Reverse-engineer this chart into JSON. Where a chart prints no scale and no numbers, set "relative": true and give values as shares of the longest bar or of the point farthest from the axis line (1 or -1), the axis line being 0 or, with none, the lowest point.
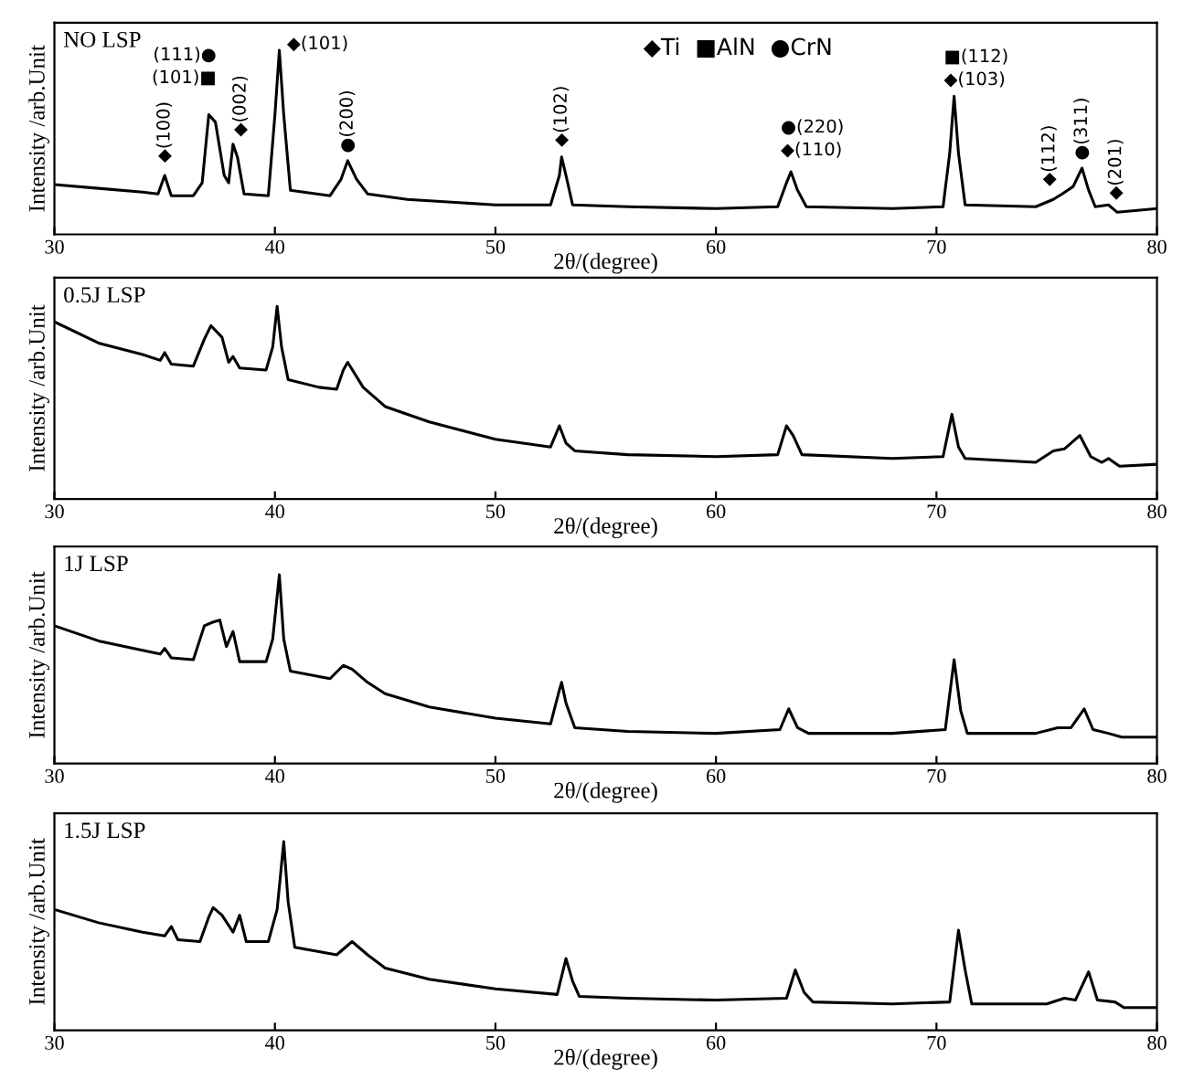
{
  "chart_data": [
    {
      "type": "line",
      "relative": true,
      "title": "NO LSP",
      "xlabel": "2θ/(degree)",
      "ylabel": "Intensity /arb.Unit",
      "xlim": [
        30,
        80
      ],
      "xticks": [
        30,
        40,
        50,
        60,
        70,
        80
      ],
      "grid": false,
      "legend": false,
      "marker": "none",
      "line_style": "solid",
      "x": [
        30,
        32,
        34,
        34.7,
        35.0,
        35.3,
        36.3,
        36.7,
        37.0,
        37.3,
        37.7,
        37.9,
        38.1,
        38.3,
        38.6,
        39.7,
        40.0,
        40.2,
        40.4,
        40.7,
        42.5,
        43.0,
        43.3,
        43.7,
        44.2,
        46,
        50,
        52.5,
        52.9,
        53.0,
        53.2,
        53.5,
        56,
        60,
        62.8,
        63.2,
        63.4,
        63.7,
        64.1,
        68,
        70.3,
        70.6,
        70.8,
        71.0,
        71.3,
        74.5,
        75.3,
        75.7,
        76.2,
        76.6,
        76.9,
        77.2,
        77.8,
        78.2,
        80
      ],
      "series": [
        {
          "color": "#000000",
          "values": [
            0.27,
            0.25,
            0.23,
            0.22,
            0.32,
            0.21,
            0.21,
            0.28,
            0.65,
            0.61,
            0.32,
            0.28,
            0.49,
            0.42,
            0.22,
            0.21,
            0.65,
            1.0,
            0.65,
            0.24,
            0.21,
            0.3,
            0.4,
            0.3,
            0.22,
            0.19,
            0.16,
            0.16,
            0.32,
            0.42,
            0.32,
            0.16,
            0.15,
            0.14,
            0.15,
            0.28,
            0.34,
            0.24,
            0.15,
            0.14,
            0.15,
            0.44,
            0.75,
            0.44,
            0.16,
            0.15,
            0.19,
            0.22,
            0.26,
            0.36,
            0.24,
            0.15,
            0.16,
            0.12,
            0.14
          ]
        }
      ],
      "annotations": [
        "◆Ti  ■AlN  ●CrN",
        {
          "text": "◆(100)",
          "x": 35.0,
          "y": 0.32
        },
        {
          "text": "(111)●",
          "x": 37.0,
          "y": 0.65
        },
        {
          "text": "(101)■",
          "x": 37.0,
          "y": 0.65
        },
        {
          "text": "◆(002)",
          "x": 38.1,
          "y": 0.49
        },
        {
          "text": "◆(101)",
          "x": 40.2,
          "y": 1.0
        },
        {
          "text": "●(200)",
          "x": 43.3,
          "y": 0.4
        },
        {
          "text": "◆(102)",
          "x": 53.0,
          "y": 0.42
        },
        {
          "text": "●(220)",
          "x": 63.4,
          "y": 0.34
        },
        {
          "text": "◆(110)",
          "x": 63.4,
          "y": 0.34
        },
        {
          "text": "■(112)",
          "x": 70.8,
          "y": 0.75
        },
        {
          "text": "◆(103)",
          "x": 70.8,
          "y": 0.75
        },
        {
          "text": "◆(112)",
          "x": 75.7,
          "y": 0.22
        },
        {
          "text": "●(311)",
          "x": 76.6,
          "y": 0.36
        },
        {
          "text": "◆(201)",
          "x": 77.8,
          "y": 0.16
        }
      ]
    },
    {
      "type": "line",
      "relative": true,
      "title": "0.5J LSP",
      "xlabel": "2θ/(degree)",
      "ylabel": "Intensity /arb.Unit",
      "xlim": [
        30,
        80
      ],
      "xticks": [
        30,
        40,
        50,
        60,
        70,
        80
      ],
      "grid": false,
      "legend": false,
      "marker": "none",
      "line_style": "solid",
      "x": [
        30,
        32,
        34,
        34.8,
        35.0,
        35.3,
        36.3,
        36.8,
        37.1,
        37.6,
        37.9,
        38.1,
        38.4,
        39.6,
        39.9,
        40.1,
        40.3,
        40.6,
        42,
        42.8,
        43.1,
        43.3,
        44,
        45,
        47,
        50,
        52.5,
        52.9,
        53.2,
        53.6,
        56,
        60,
        62.8,
        63.2,
        63.5,
        63.9,
        68,
        70.3,
        70.7,
        71.0,
        71.3,
        74.5,
        75.3,
        75.8,
        76.5,
        77,
        77.5,
        77.8,
        78.3,
        80
      ],
      "series": [
        {
          "color": "#000000",
          "values": [
            0.92,
            0.81,
            0.75,
            0.72,
            0.76,
            0.7,
            0.69,
            0.83,
            0.9,
            0.84,
            0.71,
            0.74,
            0.68,
            0.67,
            0.79,
            1.0,
            0.79,
            0.62,
            0.58,
            0.57,
            0.67,
            0.71,
            0.58,
            0.48,
            0.4,
            0.31,
            0.27,
            0.38,
            0.29,
            0.25,
            0.23,
            0.22,
            0.23,
            0.38,
            0.33,
            0.23,
            0.21,
            0.22,
            0.44,
            0.27,
            0.21,
            0.19,
            0.25,
            0.26,
            0.33,
            0.22,
            0.19,
            0.21,
            0.17,
            0.18
          ]
        }
      ]
    },
    {
      "type": "line",
      "relative": true,
      "title": "1J LSP",
      "xlabel": "2θ/(degree)",
      "ylabel": "Intensity /arb.Unit",
      "xlim": [
        30,
        80
      ],
      "xticks": [
        30,
        40,
        50,
        60,
        70,
        80
      ],
      "grid": false,
      "legend": false,
      "marker": "none",
      "line_style": "solid",
      "x": [
        30,
        32,
        34,
        34.8,
        35.0,
        35.3,
        36.3,
        36.8,
        37.2,
        37.5,
        37.8,
        38.1,
        38.4,
        39.6,
        39.9,
        40.2,
        40.4,
        40.7,
        42.5,
        43.1,
        43.5,
        44.2,
        45,
        47,
        50,
        52.5,
        52.9,
        53.0,
        53.2,
        53.6,
        56,
        60,
        62.9,
        63.3,
        63.7,
        64.2,
        68,
        70.4,
        70.8,
        71.1,
        71.4,
        74.5,
        75.5,
        76.1,
        76.7,
        77.1,
        77.8,
        78.4,
        80
      ],
      "series": [
        {
          "color": "#000000",
          "values": [
            0.73,
            0.65,
            0.6,
            0.58,
            0.61,
            0.56,
            0.55,
            0.73,
            0.75,
            0.76,
            0.62,
            0.7,
            0.54,
            0.54,
            0.66,
            1.0,
            0.66,
            0.49,
            0.45,
            0.52,
            0.5,
            0.43,
            0.37,
            0.3,
            0.24,
            0.21,
            0.39,
            0.43,
            0.32,
            0.19,
            0.17,
            0.16,
            0.18,
            0.29,
            0.19,
            0.16,
            0.16,
            0.18,
            0.55,
            0.28,
            0.16,
            0.16,
            0.19,
            0.19,
            0.29,
            0.18,
            0.16,
            0.14,
            0.14
          ]
        }
      ]
    },
    {
      "type": "line",
      "relative": true,
      "title": "1.5J LSP",
      "xlabel": "2θ/(degree)",
      "ylabel": "Intensity /arb.Unit",
      "xlim": [
        30,
        80
      ],
      "xticks": [
        30,
        40,
        50,
        60,
        70,
        80
      ],
      "grid": false,
      "legend": false,
      "marker": "none",
      "line_style": "solid",
      "x": [
        30,
        32,
        34,
        35.0,
        35.3,
        35.6,
        36.6,
        37.0,
        37.2,
        37.6,
        38.1,
        38.4,
        38.7,
        39.7,
        40.1,
        40.4,
        40.6,
        40.9,
        42.8,
        43.5,
        44.2,
        45,
        47,
        50,
        52.8,
        53.2,
        53.5,
        53.8,
        56,
        60,
        63.2,
        63.6,
        64.0,
        64.4,
        68,
        70.6,
        71.0,
        71.3,
        71.6,
        75,
        75.8,
        76.3,
        76.9,
        77.3,
        78.1,
        78.5,
        80
      ],
      "series": [
        {
          "color": "#000000",
          "values": [
            0.64,
            0.57,
            0.52,
            0.5,
            0.55,
            0.48,
            0.47,
            0.6,
            0.65,
            0.61,
            0.52,
            0.61,
            0.47,
            0.47,
            0.64,
            1.0,
            0.68,
            0.44,
            0.4,
            0.47,
            0.4,
            0.33,
            0.27,
            0.22,
            0.19,
            0.38,
            0.26,
            0.18,
            0.17,
            0.16,
            0.17,
            0.32,
            0.2,
            0.15,
            0.14,
            0.15,
            0.53,
            0.32,
            0.14,
            0.14,
            0.17,
            0.16,
            0.31,
            0.16,
            0.15,
            0.12,
            0.12
          ]
        }
      ]
    }
  ]
}
